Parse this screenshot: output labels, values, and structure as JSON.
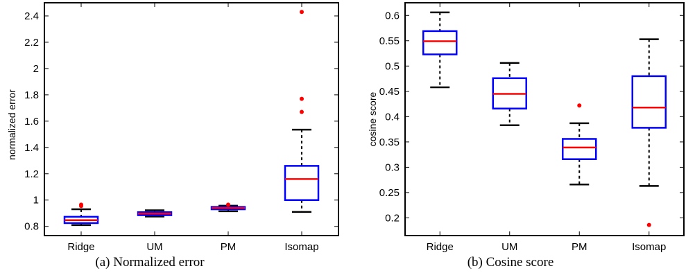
{
  "chart_data": [
    {
      "type": "box",
      "ylabel": "normalized error",
      "caption": "(a)  Normalized error",
      "categories": [
        "Ridge",
        "UM",
        "PM",
        "Isomap"
      ],
      "ylim": [
        0.73,
        2.5
      ],
      "yticks": [
        0.8,
        1,
        1.2,
        1.4,
        1.6,
        1.8,
        2,
        2.2,
        2.4
      ],
      "ytick_labels": [
        "0.8",
        "1",
        "1.2",
        "1.4",
        "1.6",
        "1.8",
        "2",
        "2.2",
        "2.4"
      ],
      "boxes": [
        {
          "category": "Ridge",
          "whisker_low": 0.81,
          "q1": 0.825,
          "median": 0.847,
          "q3": 0.873,
          "whisker_high": 0.93,
          "outliers": [
            0.955,
            0.965
          ]
        },
        {
          "category": "UM",
          "whisker_low": 0.875,
          "q1": 0.885,
          "median": 0.897,
          "q3": 0.908,
          "whisker_high": 0.922,
          "outliers": []
        },
        {
          "category": "PM",
          "whisker_low": 0.915,
          "q1": 0.93,
          "median": 0.94,
          "q3": 0.948,
          "whisker_high": 0.957,
          "outliers": [
            0.965
          ]
        },
        {
          "category": "Isomap",
          "whisker_low": 0.91,
          "q1": 1.0,
          "median": 1.16,
          "q3": 1.26,
          "whisker_high": 1.535,
          "outliers": [
            1.67,
            1.77,
            2.43
          ]
        }
      ]
    },
    {
      "type": "box",
      "ylabel": "cosine score",
      "caption": "(b)  Cosine score",
      "categories": [
        "Ridge",
        "UM",
        "PM",
        "Isomap"
      ],
      "ylim": [
        0.165,
        0.625
      ],
      "yticks": [
        0.2,
        0.25,
        0.3,
        0.35,
        0.4,
        0.45,
        0.5,
        0.55,
        0.6
      ],
      "ytick_labels": [
        "0.2",
        "0.25",
        "0.3",
        "0.35",
        "0.4",
        "0.45",
        "0.5",
        "0.55",
        "0.6"
      ],
      "boxes": [
        {
          "category": "Ridge",
          "whisker_low": 0.458,
          "q1": 0.523,
          "median": 0.549,
          "q3": 0.569,
          "whisker_high": 0.606,
          "outliers": []
        },
        {
          "category": "UM",
          "whisker_low": 0.383,
          "q1": 0.416,
          "median": 0.445,
          "q3": 0.476,
          "whisker_high": 0.506,
          "outliers": []
        },
        {
          "category": "PM",
          "whisker_low": 0.266,
          "q1": 0.316,
          "median": 0.339,
          "q3": 0.356,
          "whisker_high": 0.387,
          "outliers": [
            0.422
          ]
        },
        {
          "category": "Isomap",
          "whisker_low": 0.263,
          "q1": 0.378,
          "median": 0.418,
          "q3": 0.48,
          "whisker_high": 0.553,
          "outliers": [
            0.186
          ]
        }
      ]
    }
  ],
  "colors": {
    "box": "#0000ff",
    "median": "#ff0000",
    "outlier": "#ff0000",
    "whisker": "#000000",
    "axes": "#000000"
  }
}
